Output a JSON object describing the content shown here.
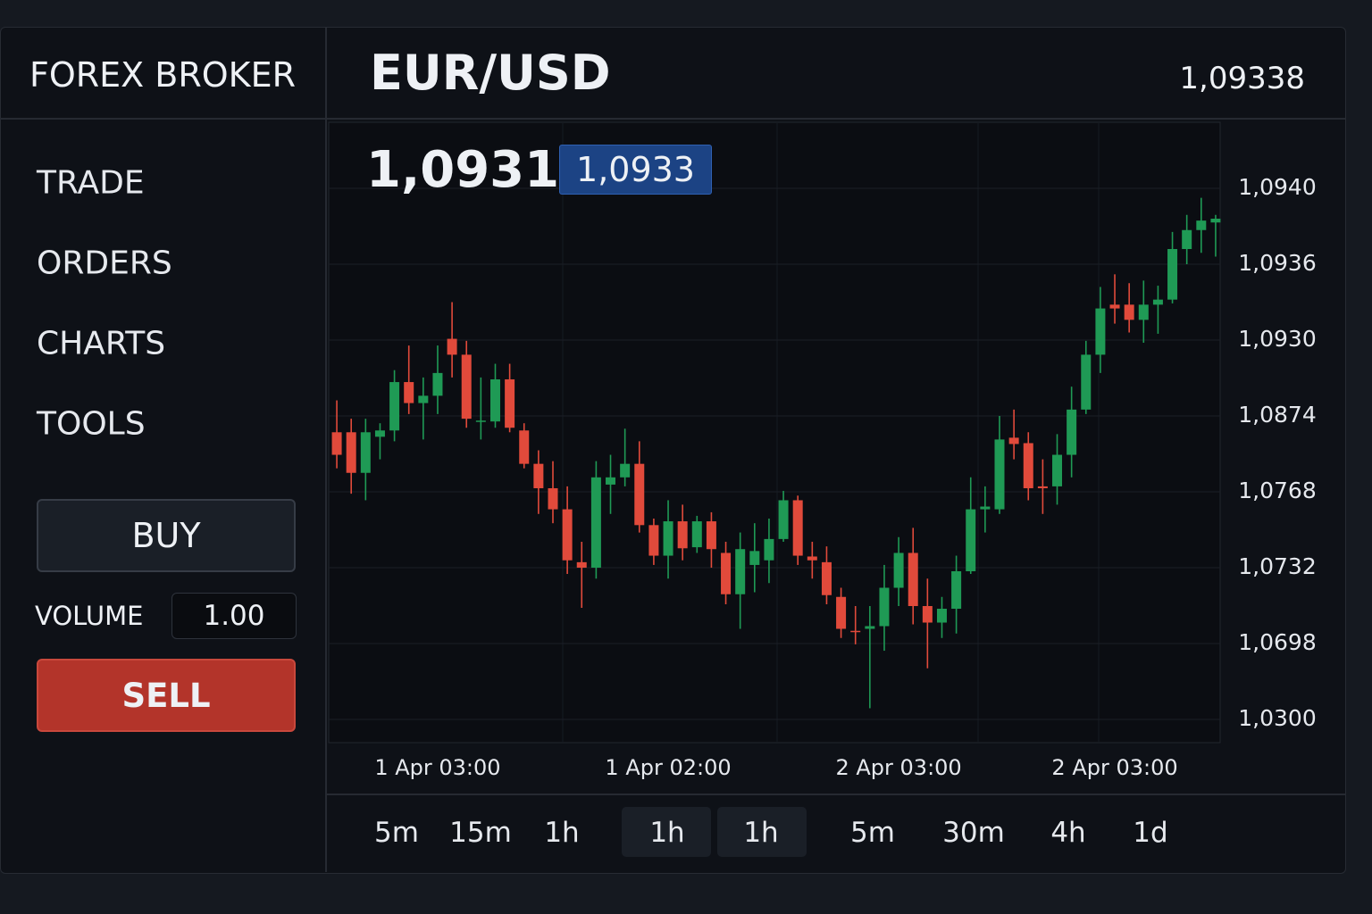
{
  "header": {
    "brand": "FOREX BROKER",
    "pair": "EUR/USD",
    "quote": "1,09338"
  },
  "nav": [
    "TRADE",
    "ORDERS",
    "CHARTS",
    "TOOLS"
  ],
  "trade_panel": {
    "buy": "BUY",
    "volume_label": "VOLUME",
    "volume": "1.00",
    "sell": "SELL"
  },
  "prices": {
    "bid": "1,0931",
    "ask": "1,0933"
  },
  "timeframes": [
    "5m",
    "15m",
    "1h",
    "1h",
    "1h",
    "5m",
    "30m",
    "4h",
    "1d"
  ],
  "chart_data": {
    "type": "candlestick",
    "categories": [
      null,
      null,
      null,
      null,
      null,
      null,
      null,
      "1 Apr 03:00",
      null,
      null,
      null,
      null,
      null,
      null,
      null,
      null,
      null,
      null,
      null,
      null,
      null,
      null,
      null,
      "1 Apr 02:00",
      null,
      null,
      null,
      null,
      null,
      null,
      null,
      null,
      null,
      null,
      null,
      null,
      null,
      null,
      null,
      "2 Apr 03:00",
      null,
      null,
      null,
      null,
      null,
      null,
      null,
      null,
      null,
      null,
      null,
      null,
      null,
      null,
      "2 Apr 03:00",
      null,
      null,
      null,
      null,
      null,
      null,
      null
    ],
    "open": [
      1.08512,
      1.08512,
      1.07945,
      1.08449,
      1.08537,
      1.0899,
      1.08835,
      1.08889,
      1.09301,
      1.09192,
      1.08663,
      1.08663,
      1.0901,
      1.08537,
      1.08071,
      1.0773,
      1.07597,
      1.07346,
      1.0732,
      1.07781,
      1.07882,
      1.08071,
      1.07522,
      1.07377,
      1.0754,
      1.07417,
      1.0754,
      1.0739,
      1.07201,
      1.07333,
      1.07355,
      1.07456,
      1.0764,
      1.07373,
      1.07346,
      1.07189,
      1.07037,
      1.07046,
      1.07058,
      1.0723,
      1.0739,
      1.07148,
      1.07074,
      1.07136,
      1.07304,
      1.07597,
      1.07597,
      1.08436,
      1.0836,
      1.07756,
      1.07756,
      1.08197,
      1.08787,
      1.09192,
      1.09328,
      1.09328,
      1.09316,
      1.09328,
      1.09332,
      1.09368,
      1.09378,
      1.09382
    ],
    "high": [
      1.08855,
      1.08701,
      1.08701,
      1.08638,
      1.09078,
      1.0926,
      1.09024,
      1.0926,
      1.0933,
      1.09294,
      1.09024,
      1.09125,
      1.09125,
      1.08638,
      1.0826,
      1.08108,
      1.07756,
      1.07443,
      1.08108,
      1.08197,
      1.08562,
      1.08386,
      1.07553,
      1.0764,
      1.07619,
      1.07566,
      1.07583,
      1.07443,
      1.07487,
      1.07531,
      1.07553,
      1.07693,
      1.07662,
      1.07443,
      1.07421,
      1.0723,
      1.07148,
      1.07148,
      1.07333,
      1.07465,
      1.07509,
      1.07271,
      1.07189,
      1.07377,
      1.07882,
      1.07756,
      1.0874,
      1.08787,
      1.08512,
      1.08134,
      1.08486,
      1.08956,
      1.09294,
      1.09342,
      1.09352,
      1.09345,
      1.09347,
      1.09343,
      1.09377,
      1.09386,
      1.09395,
      1.09386
    ],
    "low": [
      1.08008,
      1.07671,
      1.0764,
      1.08134,
      1.08386,
      1.08754,
      1.08411,
      1.08754,
      1.09024,
      1.08575,
      1.08411,
      1.08575,
      1.08512,
      1.08008,
      1.07575,
      1.07531,
      1.07292,
      1.0714,
      1.07271,
      1.07575,
      1.07756,
      1.07487,
      1.07333,
      1.07271,
      1.07355,
      1.0739,
      1.0732,
      1.07156,
      1.07046,
      1.0721,
      1.07251,
      1.07443,
      1.07333,
      1.07271,
      1.07156,
      1.07005,
      1.06939,
      1.03587,
      1.06603,
      1.07148,
      1.07066,
      1.05682,
      1.07005,
      1.07025,
      1.07292,
      1.07487,
      1.07575,
      1.08134,
      1.0764,
      1.07575,
      1.07619,
      1.07882,
      1.08754,
      1.09057,
      1.09313,
      1.09306,
      1.0928,
      1.09305,
      1.09329,
      1.0936,
      1.09366,
      1.09364
    ],
    "close": [
      1.08197,
      1.07945,
      1.08512,
      1.08537,
      1.0899,
      1.08835,
      1.08889,
      1.09057,
      1.09192,
      1.08701,
      1.08675,
      1.0901,
      1.08575,
      1.08071,
      1.0773,
      1.07597,
      1.07355,
      1.0732,
      1.07882,
      1.07882,
      1.08071,
      1.07522,
      1.07377,
      1.0754,
      1.07412,
      1.0754,
      1.07408,
      1.07201,
      1.07408,
      1.07399,
      1.07456,
      1.0764,
      1.07377,
      1.07355,
      1.07197,
      1.07046,
      1.07033,
      1.07058,
      1.0723,
      1.0739,
      1.07148,
      1.07074,
      1.07136,
      1.07304,
      1.07597,
      1.0761,
      1.08411,
      1.08348,
      1.0773,
      1.0773,
      1.08197,
      1.08787,
      1.09192,
      1.09325,
      1.09325,
      1.09316,
      1.09328,
      1.09332,
      1.09368,
      1.09378,
      1.09383,
      1.09384
    ],
    "up_color": "#1f9a55",
    "down_color": "#e14a3b",
    "ylim": [
      1.0199,
      1.09434
    ],
    "yticks": [
      {
        "value": 1.03,
        "label": "1,0300"
      },
      {
        "value": 1.0698,
        "label": "1,0698"
      },
      {
        "value": 1.0732,
        "label": "1,0732"
      },
      {
        "value": 1.0768,
        "label": "1,0768"
      },
      {
        "value": 1.0874,
        "label": "1,0874"
      },
      {
        "value": 1.093,
        "label": "1,0930"
      },
      {
        "value": 1.0936,
        "label": "1,0936"
      },
      {
        "value": 1.094,
        "label": "1,0940"
      }
    ],
    "grid": true
  }
}
